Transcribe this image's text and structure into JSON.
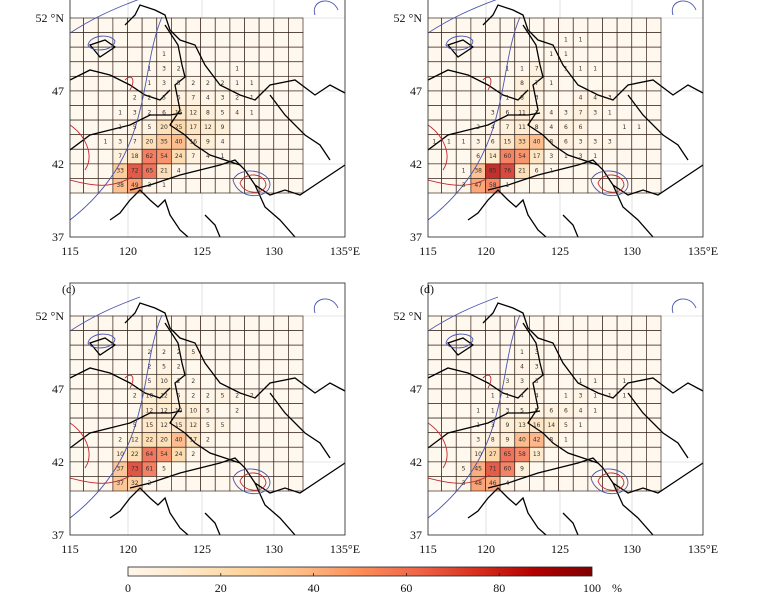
{
  "figure": {
    "lat_labels": [
      "52 °N",
      "47",
      "42",
      "37"
    ],
    "lon_labels": [
      "115",
      "120",
      "125",
      "130",
      "135°E"
    ],
    "colorbar": {
      "ticks": [
        "0",
        "20",
        "40",
        "60",
        "80",
        "100"
      ],
      "unit": "%",
      "range": [
        0,
        100
      ],
      "colormap": [
        "#fff7ec",
        "#fee8c8",
        "#fdd49e",
        "#fdbb84",
        "#fc8d59",
        "#ef6548",
        "#d7301f",
        "#b30000",
        "#7f0000"
      ]
    },
    "grid": {
      "rows": 12,
      "cols": 16
    },
    "contour_colors": {
      "positive": "#c0282d",
      "negative": "#4a55b0"
    }
  },
  "panels": [
    {
      "id": "a",
      "label": "",
      "cells": [
        [
          2,
          6,
          1
        ],
        [
          3,
          5,
          1
        ],
        [
          3,
          6,
          3
        ],
        [
          3,
          7,
          2
        ],
        [
          3,
          11,
          1
        ],
        [
          4,
          5,
          1
        ],
        [
          4,
          6,
          3
        ],
        [
          4,
          7,
          5
        ],
        [
          4,
          8,
          2
        ],
        [
          4,
          9,
          2
        ],
        [
          4,
          10,
          2
        ],
        [
          4,
          11,
          1
        ],
        [
          4,
          12,
          1
        ],
        [
          5,
          4,
          2
        ],
        [
          5,
          5,
          2
        ],
        [
          5,
          6,
          5
        ],
        [
          5,
          7,
          6
        ],
        [
          5,
          8,
          7
        ],
        [
          5,
          9,
          4
        ],
        [
          5,
          10,
          3
        ],
        [
          5,
          11,
          2
        ],
        [
          5,
          12,
          1
        ],
        [
          6,
          3,
          1
        ],
        [
          6,
          4,
          3
        ],
        [
          6,
          5,
          2
        ],
        [
          6,
          6,
          6
        ],
        [
          6,
          7,
          15
        ],
        [
          6,
          8,
          12
        ],
        [
          6,
          9,
          8
        ],
        [
          6,
          10,
          5
        ],
        [
          6,
          11,
          4
        ],
        [
          6,
          12,
          1
        ],
        [
          7,
          3,
          1
        ],
        [
          7,
          4,
          5
        ],
        [
          7,
          5,
          5
        ],
        [
          7,
          6,
          20
        ],
        [
          7,
          7,
          25
        ],
        [
          7,
          8,
          17
        ],
        [
          7,
          9,
          12
        ],
        [
          7,
          10,
          9
        ],
        [
          8,
          2,
          1
        ],
        [
          8,
          3,
          3
        ],
        [
          8,
          4,
          7
        ],
        [
          8,
          5,
          20
        ],
        [
          8,
          6,
          35
        ],
        [
          8,
          7,
          40
        ],
        [
          8,
          8,
          16
        ],
        [
          8,
          9,
          9
        ],
        [
          8,
          10,
          4
        ],
        [
          9,
          3,
          7
        ],
        [
          9,
          4,
          18
        ],
        [
          9,
          5,
          62
        ],
        [
          9,
          6,
          54
        ],
        [
          9,
          7,
          24
        ],
        [
          9,
          8,
          7
        ],
        [
          9,
          9,
          4
        ],
        [
          9,
          10,
          1
        ],
        [
          10,
          3,
          33
        ],
        [
          10,
          4,
          72
        ],
        [
          10,
          5,
          65
        ],
        [
          10,
          6,
          21
        ],
        [
          10,
          7,
          4
        ],
        [
          11,
          3,
          38
        ],
        [
          11,
          4,
          49
        ],
        [
          11,
          5,
          3
        ],
        [
          11,
          6,
          1
        ]
      ]
    },
    {
      "id": "b",
      "label": "",
      "cells": [
        [
          1,
          9,
          1
        ],
        [
          1,
          10,
          1
        ],
        [
          2,
          8,
          1
        ],
        [
          2,
          9,
          1
        ],
        [
          3,
          5,
          1
        ],
        [
          3,
          6,
          1
        ],
        [
          3,
          7,
          7
        ],
        [
          3,
          9,
          1
        ],
        [
          3,
          10,
          1
        ],
        [
          3,
          11,
          1
        ],
        [
          4,
          6,
          8
        ],
        [
          4,
          7,
          7
        ],
        [
          4,
          8,
          1
        ],
        [
          5,
          5,
          1
        ],
        [
          5,
          6,
          8
        ],
        [
          5,
          7,
          3
        ],
        [
          5,
          10,
          4
        ],
        [
          5,
          11,
          4
        ],
        [
          5,
          12,
          3
        ],
        [
          6,
          4,
          3
        ],
        [
          6,
          5,
          6
        ],
        [
          6,
          6,
          11
        ],
        [
          6,
          7,
          7
        ],
        [
          6,
          8,
          4
        ],
        [
          6,
          9,
          3
        ],
        [
          6,
          10,
          7
        ],
        [
          6,
          11,
          3
        ],
        [
          6,
          12,
          1
        ],
        [
          7,
          3,
          2
        ],
        [
          7,
          4,
          4
        ],
        [
          7,
          5,
          7
        ],
        [
          7,
          6,
          11
        ],
        [
          7,
          7,
          8
        ],
        [
          7,
          8,
          4
        ],
        [
          7,
          9,
          6
        ],
        [
          7,
          10,
          6
        ],
        [
          7,
          13,
          1
        ],
        [
          7,
          14,
          1
        ],
        [
          8,
          0,
          1
        ],
        [
          8,
          1,
          1
        ],
        [
          8,
          2,
          1
        ],
        [
          8,
          3,
          3
        ],
        [
          8,
          4,
          6
        ],
        [
          8,
          5,
          15
        ],
        [
          8,
          6,
          33
        ],
        [
          8,
          7,
          40
        ],
        [
          8,
          8,
          8
        ],
        [
          8,
          9,
          6
        ],
        [
          8,
          10,
          3
        ],
        [
          8,
          11,
          3
        ],
        [
          8,
          12,
          3
        ],
        [
          9,
          3,
          6
        ],
        [
          9,
          4,
          14
        ],
        [
          9,
          5,
          60
        ],
        [
          9,
          6,
          54
        ],
        [
          9,
          7,
          17
        ],
        [
          9,
          8,
          3
        ],
        [
          9,
          9,
          1
        ],
        [
          9,
          10,
          3
        ],
        [
          9,
          11,
          1
        ],
        [
          10,
          2,
          1
        ],
        [
          10,
          3,
          38
        ],
        [
          10,
          4,
          85
        ],
        [
          10,
          5,
          76
        ],
        [
          10,
          6,
          21
        ],
        [
          10,
          7,
          6
        ],
        [
          10,
          8,
          1
        ],
        [
          11,
          2,
          3
        ],
        [
          11,
          3,
          47
        ],
        [
          11,
          4,
          58
        ],
        [
          11,
          5,
          1
        ]
      ]
    },
    {
      "id": "c",
      "label": "(c)",
      "cells": [
        [
          2,
          5,
          2
        ],
        [
          2,
          6,
          2
        ],
        [
          2,
          7,
          2
        ],
        [
          2,
          8,
          5
        ],
        [
          3,
          5,
          2
        ],
        [
          3,
          6,
          5
        ],
        [
          3,
          7,
          2
        ],
        [
          4,
          5,
          5
        ],
        [
          4,
          6,
          10
        ],
        [
          4,
          7,
          2
        ],
        [
          4,
          8,
          2
        ],
        [
          5,
          4,
          2
        ],
        [
          5,
          5,
          10
        ],
        [
          5,
          6,
          12
        ],
        [
          5,
          7,
          5
        ],
        [
          5,
          8,
          2
        ],
        [
          5,
          9,
          2
        ],
        [
          5,
          10,
          5
        ],
        [
          5,
          11,
          2
        ],
        [
          5,
          12,
          2
        ],
        [
          6,
          5,
          12
        ],
        [
          6,
          6,
          12
        ],
        [
          6,
          7,
          10
        ],
        [
          6,
          8,
          10
        ],
        [
          6,
          9,
          5
        ],
        [
          6,
          11,
          2
        ],
        [
          7,
          4,
          5
        ],
        [
          7,
          5,
          15
        ],
        [
          7,
          6,
          12
        ],
        [
          7,
          7,
          15
        ],
        [
          7,
          8,
          12
        ],
        [
          7,
          9,
          5
        ],
        [
          7,
          10,
          5
        ],
        [
          8,
          3,
          2
        ],
        [
          8,
          4,
          12
        ],
        [
          8,
          5,
          22
        ],
        [
          8,
          6,
          20
        ],
        [
          8,
          7,
          40
        ],
        [
          8,
          8,
          17
        ],
        [
          8,
          9,
          2
        ],
        [
          9,
          3,
          10
        ],
        [
          9,
          4,
          22
        ],
        [
          9,
          5,
          64
        ],
        [
          9,
          6,
          54
        ],
        [
          9,
          7,
          24
        ],
        [
          9,
          8,
          2
        ],
        [
          10,
          3,
          37
        ],
        [
          10,
          4,
          73
        ],
        [
          10,
          5,
          61
        ],
        [
          10,
          6,
          5
        ],
        [
          11,
          3,
          37
        ],
        [
          11,
          4,
          32
        ],
        [
          11,
          5,
          2
        ]
      ]
    },
    {
      "id": "d",
      "label": "(d)",
      "cells": [
        [
          2,
          6,
          1
        ],
        [
          2,
          7,
          3
        ],
        [
          3,
          6,
          4
        ],
        [
          3,
          7,
          3
        ],
        [
          4,
          5,
          3
        ],
        [
          4,
          6,
          3
        ],
        [
          4,
          7,
          3
        ],
        [
          4,
          10,
          1
        ],
        [
          4,
          11,
          1
        ],
        [
          4,
          13,
          1
        ],
        [
          5,
          4,
          1
        ],
        [
          5,
          5,
          1
        ],
        [
          5,
          6,
          4
        ],
        [
          5,
          7,
          4
        ],
        [
          5,
          9,
          1
        ],
        [
          5,
          10,
          3
        ],
        [
          5,
          11,
          1
        ],
        [
          5,
          12,
          1
        ],
        [
          5,
          13,
          1
        ],
        [
          6,
          3,
          1
        ],
        [
          6,
          4,
          1
        ],
        [
          6,
          5,
          3
        ],
        [
          6,
          6,
          5
        ],
        [
          6,
          7,
          5
        ],
        [
          6,
          8,
          6
        ],
        [
          6,
          9,
          6
        ],
        [
          6,
          10,
          4
        ],
        [
          6,
          11,
          1
        ],
        [
          7,
          3,
          1
        ],
        [
          7,
          4,
          3
        ],
        [
          7,
          5,
          9
        ],
        [
          7,
          6,
          13
        ],
        [
          7,
          7,
          16
        ],
        [
          7,
          8,
          14
        ],
        [
          7,
          9,
          5
        ],
        [
          7,
          10,
          1
        ],
        [
          8,
          3,
          3
        ],
        [
          8,
          4,
          8
        ],
        [
          8,
          5,
          9
        ],
        [
          8,
          6,
          40
        ],
        [
          8,
          7,
          42
        ],
        [
          8,
          8,
          8
        ],
        [
          8,
          9,
          1
        ],
        [
          9,
          3,
          10
        ],
        [
          9,
          4,
          27
        ],
        [
          9,
          5,
          65
        ],
        [
          9,
          6,
          58
        ],
        [
          9,
          7,
          13
        ],
        [
          10,
          2,
          5
        ],
        [
          10,
          3,
          45
        ],
        [
          10,
          4,
          71
        ],
        [
          10,
          5,
          60
        ],
        [
          10,
          6,
          9
        ],
        [
          11,
          2,
          3
        ],
        [
          11,
          3,
          48
        ],
        [
          11,
          4,
          46
        ],
        [
          11,
          5,
          4
        ]
      ]
    }
  ]
}
